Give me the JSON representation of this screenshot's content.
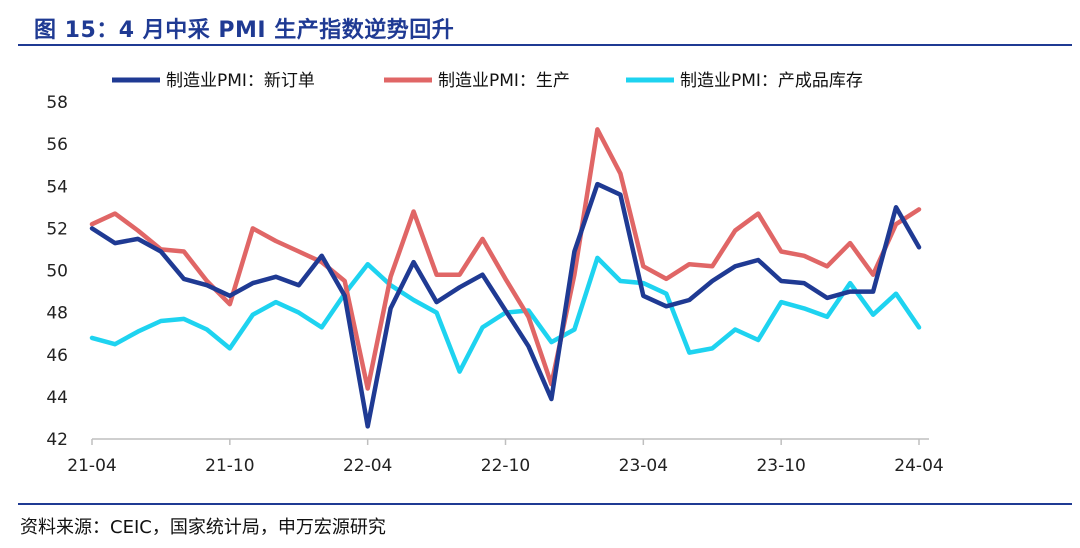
{
  "header": {
    "title": "图 15：4 月中采 PMI 生产指数逆势回升"
  },
  "footer": {
    "source": "资料来源：CEIC，国家统计局，申万宏源研究"
  },
  "chart_data": {
    "type": "line",
    "ylim": [
      42,
      58
    ],
    "yticks": [
      42,
      44,
      46,
      48,
      50,
      52,
      54,
      56,
      58
    ],
    "x": [
      "21-04",
      "21-05",
      "21-06",
      "21-07",
      "21-08",
      "21-09",
      "21-10",
      "21-11",
      "21-12",
      "22-01",
      "22-02",
      "22-03",
      "22-04",
      "22-05",
      "22-06",
      "22-07",
      "22-08",
      "22-09",
      "22-10",
      "22-11",
      "22-12",
      "23-01",
      "23-02",
      "23-03",
      "23-04",
      "23-05",
      "23-06",
      "23-07",
      "23-08",
      "23-09",
      "23-10",
      "23-11",
      "23-12",
      "24-01",
      "24-02",
      "24-03",
      "24-04"
    ],
    "xtick_labels": [
      "21-04",
      "21-10",
      "22-04",
      "22-10",
      "23-04",
      "23-10",
      "24-04"
    ],
    "legend_position": "top",
    "series": [
      {
        "name": "制造业PMI：新订单",
        "color": "#1f3a93",
        "values": [
          52.0,
          51.3,
          51.5,
          50.9,
          49.6,
          49.3,
          48.8,
          49.4,
          49.7,
          49.3,
          50.7,
          48.8,
          42.6,
          48.2,
          50.4,
          48.5,
          49.2,
          49.8,
          48.1,
          46.4,
          43.9,
          50.9,
          54.1,
          53.6,
          48.8,
          48.3,
          48.6,
          49.5,
          50.2,
          50.5,
          49.5,
          49.4,
          48.7,
          49.0,
          49.0,
          53.0,
          51.1
        ]
      },
      {
        "name": "制造业PMI：生产",
        "color": "#e06666",
        "values": [
          52.2,
          52.7,
          51.9,
          51.0,
          50.9,
          49.5,
          48.4,
          52.0,
          51.4,
          50.9,
          50.4,
          49.5,
          44.4,
          49.7,
          52.8,
          49.8,
          49.8,
          51.5,
          49.6,
          47.8,
          44.6,
          49.8,
          56.7,
          54.6,
          50.2,
          49.6,
          50.3,
          50.2,
          51.9,
          52.7,
          50.9,
          50.7,
          50.2,
          51.3,
          49.8,
          52.2,
          52.9
        ]
      },
      {
        "name": "制造业PMI：产成品库存",
        "color": "#1ed3f0",
        "values": [
          46.8,
          46.5,
          47.1,
          47.6,
          47.7,
          47.2,
          46.3,
          47.9,
          48.5,
          48.0,
          47.3,
          48.9,
          50.3,
          49.3,
          48.6,
          48.0,
          45.2,
          47.3,
          48.0,
          48.1,
          46.6,
          47.2,
          50.6,
          49.5,
          49.4,
          48.9,
          46.1,
          46.3,
          47.2,
          46.7,
          48.5,
          48.2,
          47.8,
          49.4,
          47.9,
          48.9,
          47.3
        ]
      }
    ]
  }
}
